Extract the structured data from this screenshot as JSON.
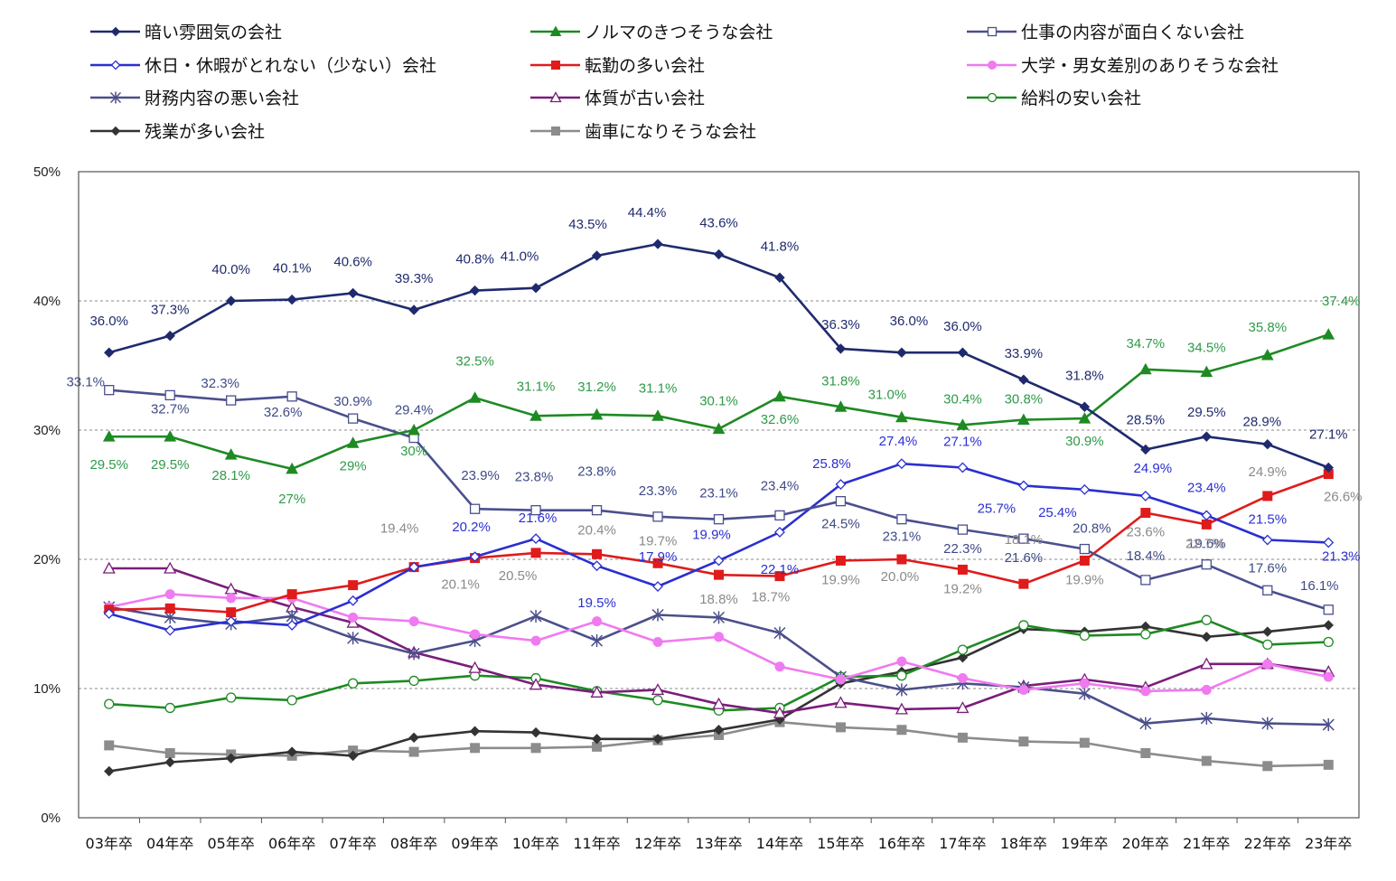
{
  "chart_data": {
    "type": "line",
    "title": "",
    "xlabel": "",
    "ylabel": "",
    "ylim": [
      0,
      50
    ],
    "yticks": [
      "0%",
      "10%",
      "20%",
      "30%",
      "40%",
      "50%"
    ],
    "grid": "horizontal dotted",
    "legend_position": "top",
    "categories": [
      "03年卒",
      "04年卒",
      "05年卒",
      "06年卒",
      "07年卒",
      "08年卒",
      "09年卒",
      "10年卒",
      "11年卒",
      "12年卒",
      "13年卒",
      "14年卒",
      "15年卒",
      "16年卒",
      "17年卒",
      "18年卒",
      "19年卒",
      "20年卒",
      "21年卒",
      "22年卒",
      "23年卒"
    ],
    "series": [
      {
        "name": "暗い雰囲気の会社",
        "color": "#1f2a6e",
        "marker": "diamond-filled",
        "labeled": true,
        "label_color": "#1f2a6e",
        "values": [
          36.0,
          37.3,
          40.0,
          40.1,
          40.6,
          39.3,
          40.8,
          41.0,
          43.5,
          44.4,
          43.6,
          41.8,
          36.3,
          36.0,
          36.0,
          33.9,
          31.8,
          28.5,
          29.5,
          28.9,
          27.1
        ],
        "labels": [
          "36.0%",
          "37.3%",
          "40.0%",
          "40.1%",
          "40.6%",
          "39.3%",
          "40.8%",
          "41.0%",
          "43.5%",
          "44.4%",
          "43.6%",
          "41.8%",
          "36.3%",
          "36.0%",
          "36.0%",
          "33.9%",
          "31.8%",
          "28.5%",
          "29.5%",
          "28.9%",
          "27.1%"
        ]
      },
      {
        "name": "ノルマのきつそうな会社",
        "color": "#1e8a23",
        "marker": "triangle-filled",
        "labeled": true,
        "label_color": "#2e9a48",
        "values": [
          29.5,
          29.5,
          28.1,
          27.0,
          29.0,
          30.0,
          32.5,
          31.1,
          31.2,
          31.1,
          30.1,
          32.6,
          31.8,
          31.0,
          30.4,
          30.8,
          30.9,
          34.7,
          34.5,
          35.8,
          37.4
        ],
        "labels": [
          "29.5%",
          "29.5%",
          "28.1%",
          "27%",
          "29%",
          "30%",
          "32.5%",
          "31.1%",
          "31.2%",
          "31.1%",
          "30.1%",
          "32.6%",
          "31.8%",
          "31.0%",
          "30.4%",
          "30.8%",
          "30.9%",
          "34.7%",
          "34.5%",
          "35.8%",
          "37.4%"
        ]
      },
      {
        "name": "仕事の内容が面白くない会社",
        "color": "#4a4f8f",
        "marker": "square-open",
        "labeled": true,
        "label_color": "#3e4a86",
        "values": [
          33.1,
          32.7,
          32.3,
          32.6,
          30.9,
          29.4,
          23.9,
          23.8,
          23.8,
          23.3,
          23.1,
          23.4,
          24.5,
          23.1,
          22.3,
          21.6,
          20.8,
          18.4,
          19.6,
          17.6,
          16.1
        ],
        "labels": [
          "33.1%",
          "32.7%",
          "32.3%",
          "32.6%",
          "30.9%",
          "29.4%",
          "23.9%",
          "23.8%",
          "23.8%",
          "23.3%",
          "23.1%",
          "23.4%",
          "24.5%",
          "23.1%",
          "22.3%",
          "21.6%",
          "20.8%",
          "18.4%",
          "19.6%",
          "17.6%",
          "16.1%"
        ]
      },
      {
        "name": "休日・休暇がとれない（少ない）会社",
        "color": "#2a2fd0",
        "marker": "diamond-open",
        "labeled": true,
        "label_color": "#2a2fd0",
        "values": [
          15.8,
          14.5,
          15.2,
          14.9,
          16.8,
          19.4,
          20.2,
          21.6,
          19.5,
          17.9,
          19.9,
          22.1,
          25.8,
          27.4,
          27.1,
          25.7,
          25.4,
          24.9,
          23.4,
          21.5,
          21.3
        ],
        "labels": [
          "",
          "",
          "",
          "",
          "",
          "",
          "20.2%",
          "21.6%",
          "19.5%",
          "17.9%",
          "19.9%",
          "22.1%",
          "25.8%",
          "27.4%",
          "27.1%",
          "25.7%",
          "25.4%",
          "24.9%",
          "23.4%",
          "21.5%",
          "21.3%"
        ]
      },
      {
        "name": "転勤の多い会社",
        "color": "#e01b1b",
        "marker": "square-filled",
        "labeled": true,
        "label_color": "#8a8a8a",
        "values": [
          16.1,
          16.2,
          15.9,
          17.3,
          18.0,
          19.4,
          20.1,
          20.5,
          20.4,
          19.7,
          18.8,
          18.7,
          19.9,
          20.0,
          19.2,
          18.1,
          19.9,
          23.6,
          22.7,
          24.9,
          26.6
        ],
        "labels": [
          "",
          "",
          "",
          "",
          "",
          "19.4%",
          "20.1%",
          "20.5%",
          "20.4%",
          "19.7%",
          "18.8%",
          "18.7%",
          "19.9%",
          "20.0%",
          "19.2%",
          "18.1%",
          "19.9%",
          "23.6%",
          "22.7%",
          "24.9%",
          "26.6%"
        ]
      },
      {
        "name": "大学・男女差別のありそうな会社",
        "color": "#f07af0",
        "marker": "circle-filled",
        "labeled": false,
        "label_color": "#f07af0",
        "values": [
          16.3,
          17.3,
          17.0,
          17.0,
          15.5,
          15.2,
          14.2,
          13.7,
          15.2,
          13.6,
          14.0,
          11.7,
          10.7,
          12.1,
          10.8,
          9.9,
          10.4,
          9.8,
          9.9,
          11.9,
          10.9
        ],
        "labels": []
      },
      {
        "name": "財務内容の悪い会社",
        "color": "#4b4f8a",
        "marker": "asterisk",
        "labeled": false,
        "label_color": "#4b4f8a",
        "values": [
          16.3,
          15.5,
          15.0,
          15.6,
          13.9,
          12.7,
          13.7,
          15.6,
          13.7,
          15.7,
          15.5,
          14.3,
          10.9,
          9.9,
          10.4,
          10.1,
          9.6,
          7.3,
          7.7,
          7.3,
          7.2
        ],
        "labels": []
      },
      {
        "name": "体質が古い会社",
        "color": "#7a1d7a",
        "marker": "triangle-open",
        "labeled": false,
        "label_color": "#7a1d7a",
        "values": [
          19.3,
          19.3,
          17.7,
          16.3,
          15.1,
          12.8,
          11.6,
          10.3,
          9.7,
          9.9,
          8.8,
          8.1,
          8.9,
          8.4,
          8.5,
          10.2,
          10.7,
          10.1,
          11.9,
          11.9,
          11.3
        ],
        "labels": []
      },
      {
        "name": "給料の安い会社",
        "color": "#1e8a23",
        "marker": "circle-open",
        "labeled": false,
        "label_color": "#1e8a23",
        "values": [
          8.8,
          8.5,
          9.3,
          9.1,
          10.4,
          10.6,
          11.0,
          10.8,
          9.8,
          9.1,
          8.3,
          8.5,
          10.9,
          11.0,
          13.0,
          14.9,
          14.1,
          14.2,
          15.3,
          13.4,
          13.6
        ],
        "labels": []
      },
      {
        "name": "残業が多い会社",
        "color": "#333333",
        "marker": "diamond-filled",
        "labeled": false,
        "label_color": "#333333",
        "values": [
          3.6,
          4.3,
          4.6,
          5.1,
          4.8,
          6.2,
          6.7,
          6.6,
          6.1,
          6.1,
          6.8,
          7.6,
          10.4,
          11.3,
          12.4,
          14.6,
          14.4,
          14.8,
          14.0,
          14.4,
          14.9
        ],
        "labels": []
      },
      {
        "name": "歯車になりそうな会社",
        "color": "#8c8c8c",
        "marker": "square-filled",
        "labeled": false,
        "label_color": "#8c8c8c",
        "values": [
          5.6,
          5.0,
          4.9,
          4.8,
          5.2,
          5.1,
          5.4,
          5.4,
          5.5,
          6.0,
          6.4,
          7.4,
          7.0,
          6.8,
          6.2,
          5.9,
          5.8,
          5.0,
          4.4,
          4.0,
          4.1
        ],
        "labels": []
      }
    ]
  }
}
